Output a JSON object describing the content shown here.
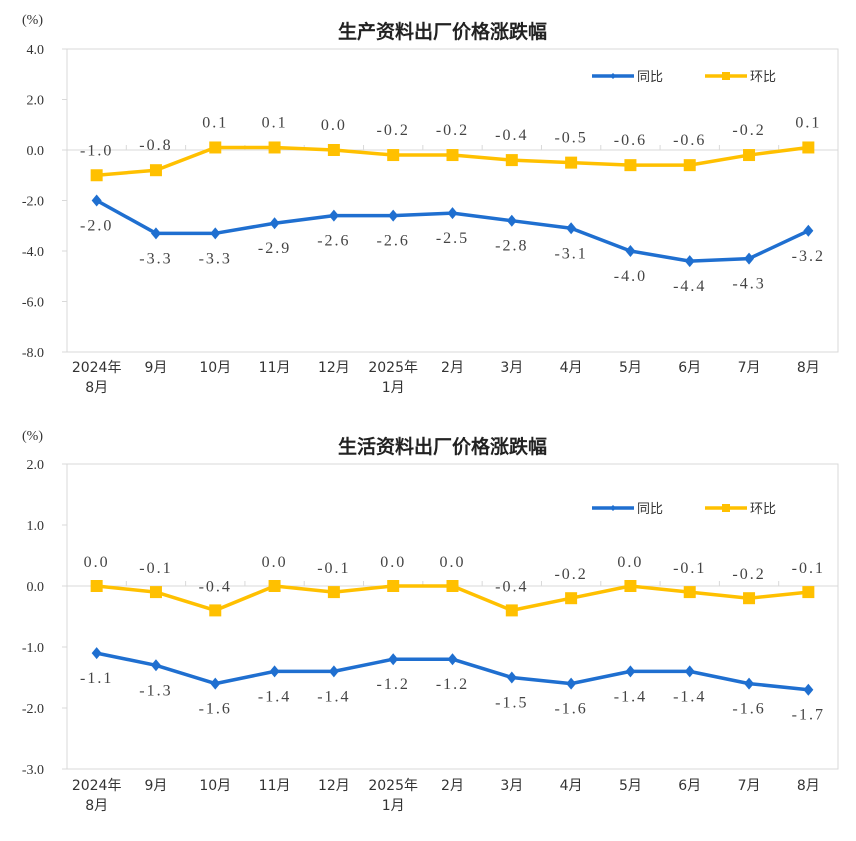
{
  "chart_data": [
    {
      "type": "line",
      "title": "生产资料出厂价格涨跌幅",
      "ylabel": "(%)",
      "ylim": [
        -8.0,
        4.0
      ],
      "yticks": [
        "4.0",
        "2.0",
        "0.0",
        "-2.0",
        "-4.0",
        "-6.0",
        "-8.0"
      ],
      "ytick_values": [
        4,
        2,
        0,
        -2,
        -4,
        -6,
        -8
      ],
      "categories": [
        [
          "2024年",
          "8月"
        ],
        [
          "9月"
        ],
        [
          "10月"
        ],
        [
          "11月"
        ],
        [
          "12月"
        ],
        [
          "2025年",
          "1月"
        ],
        [
          "2月"
        ],
        [
          "3月"
        ],
        [
          "4月"
        ],
        [
          "5月"
        ],
        [
          "6月"
        ],
        [
          "7月"
        ],
        [
          "8月"
        ]
      ],
      "legend": "top-right",
      "series": [
        {
          "name": "同比",
          "color": "#1F6FD0",
          "marker": "diamond",
          "values": [
            -2.0,
            -3.3,
            -3.3,
            -2.9,
            -2.6,
            -2.6,
            -2.5,
            -2.8,
            -3.1,
            -4.0,
            -4.4,
            -4.3,
            -3.2
          ],
          "labels": [
            "-2.0",
            "-3.3",
            "-3.3",
            "-2.9",
            "-2.6",
            "-2.6",
            "-2.5",
            "-2.8",
            "-3.1",
            "-4.0",
            "-4.4",
            "-4.3",
            "-3.2"
          ]
        },
        {
          "name": "环比",
          "color": "#FFC000",
          "marker": "square",
          "values": [
            -1.0,
            -0.8,
            0.1,
            0.1,
            0.0,
            -0.2,
            -0.2,
            -0.4,
            -0.5,
            -0.6,
            -0.6,
            -0.2,
            0.1
          ],
          "labels": [
            "-1.0",
            "-0.8",
            "0.1",
            "0.1",
            "0.0",
            "-0.2",
            "-0.2",
            "-0.4",
            "-0.5",
            "-0.6",
            "-0.6",
            "-0.2",
            "0.1"
          ]
        }
      ]
    },
    {
      "type": "line",
      "title": "生活资料出厂价格涨跌幅",
      "ylabel": "(%)",
      "ylim": [
        -3.0,
        2.0
      ],
      "yticks": [
        "2.0",
        "1.0",
        "0.0",
        "-1.0",
        "-2.0",
        "-3.0"
      ],
      "ytick_values": [
        2,
        1,
        0,
        -1,
        -2,
        -3
      ],
      "categories": [
        [
          "2024年",
          "8月"
        ],
        [
          "9月"
        ],
        [
          "10月"
        ],
        [
          "11月"
        ],
        [
          "12月"
        ],
        [
          "2025年",
          "1月"
        ],
        [
          "2月"
        ],
        [
          "3月"
        ],
        [
          "4月"
        ],
        [
          "5月"
        ],
        [
          "6月"
        ],
        [
          "7月"
        ],
        [
          "8月"
        ]
      ],
      "legend": "top-right",
      "series": [
        {
          "name": "同比",
          "color": "#1F6FD0",
          "marker": "diamond",
          "values": [
            -1.1,
            -1.3,
            -1.6,
            -1.4,
            -1.4,
            -1.2,
            -1.2,
            -1.5,
            -1.6,
            -1.4,
            -1.4,
            -1.6,
            -1.7
          ],
          "labels": [
            "-1.1",
            "-1.3",
            "-1.6",
            "-1.4",
            "-1.4",
            "-1.2",
            "-1.2",
            "-1.5",
            "-1.6",
            "-1.4",
            "-1.4",
            "-1.6",
            "-1.7"
          ]
        },
        {
          "name": "环比",
          "color": "#FFC000",
          "marker": "square",
          "values": [
            0.0,
            -0.1,
            -0.4,
            0.0,
            -0.1,
            0.0,
            0.0,
            -0.4,
            -0.2,
            0.0,
            -0.1,
            -0.2,
            -0.1
          ],
          "labels": [
            "0.0",
            "-0.1",
            "-0.4",
            "0.0",
            "-0.1",
            "0.0",
            "0.0",
            "-0.4",
            "-0.2",
            "0.0",
            "-0.1",
            "-0.2",
            "-0.1"
          ]
        }
      ]
    }
  ]
}
